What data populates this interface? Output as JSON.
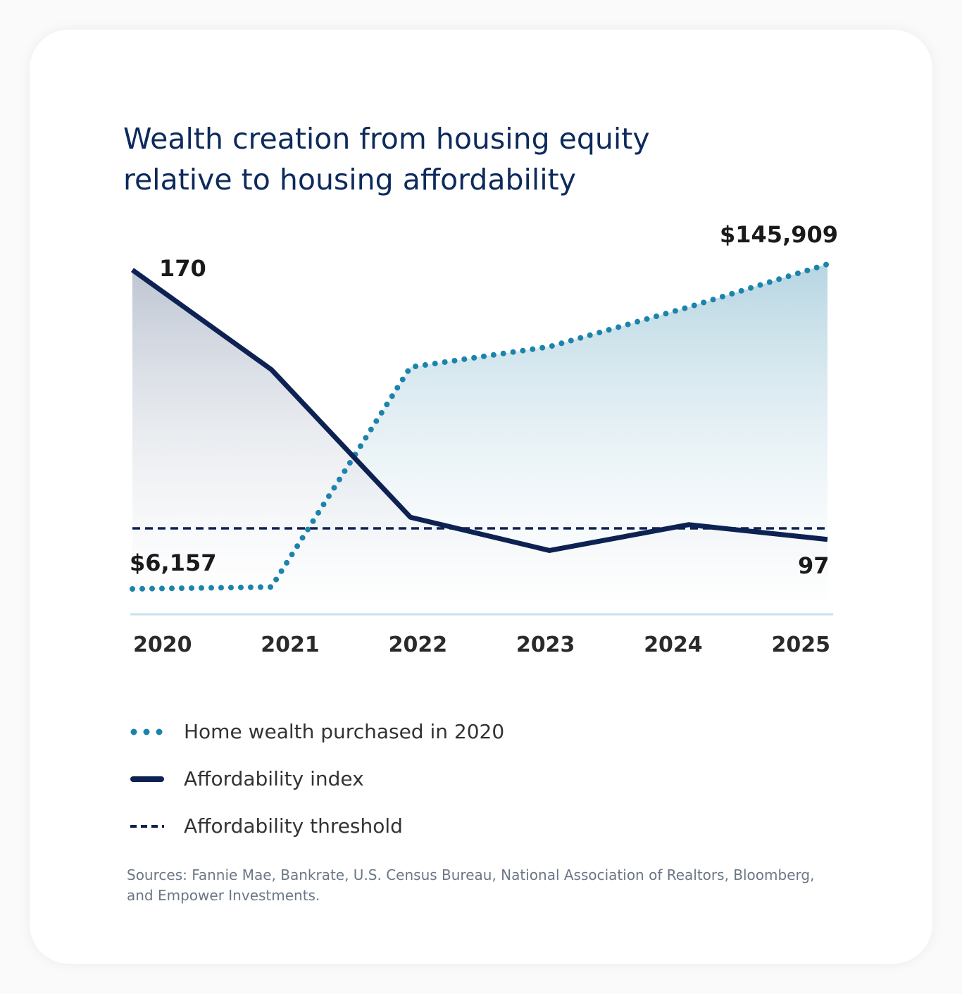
{
  "title": "Wealth creation from housing equity\nrelative to housing affordability",
  "chart_data": {
    "type": "line",
    "title": "Wealth creation from housing equity relative to housing affordability",
    "categories": [
      "2020",
      "2021",
      "2022",
      "2023",
      "2024",
      "2025"
    ],
    "series": [
      {
        "name": "Home wealth purchased in 2020",
        "values": [
          6157,
          7000,
          101600,
          110400,
          127400,
          145909
        ],
        "style": "dotted",
        "color": "#1c83ab",
        "area_fill": true
      },
      {
        "name": "Affordability index",
        "values": [
          170,
          143,
          103,
          94,
          101,
          97
        ],
        "style": "solid",
        "color": "#0d2252",
        "area_fill": true
      },
      {
        "name": "Affordability threshold",
        "values": [
          100,
          100,
          100,
          100,
          100,
          100
        ],
        "style": "dashed",
        "color": "#0d2252"
      }
    ],
    "data_labels": {
      "wealth_start": "$6,157",
      "wealth_end": "$145,909",
      "index_start": "170",
      "index_end": "97"
    },
    "grid": false,
    "legend_position": "bottom"
  },
  "sources": "Sources: Fannie Mae, Bankrate, U.S. Census Bureau, National Association of Realtors, Bloomberg, and Empower Investments."
}
